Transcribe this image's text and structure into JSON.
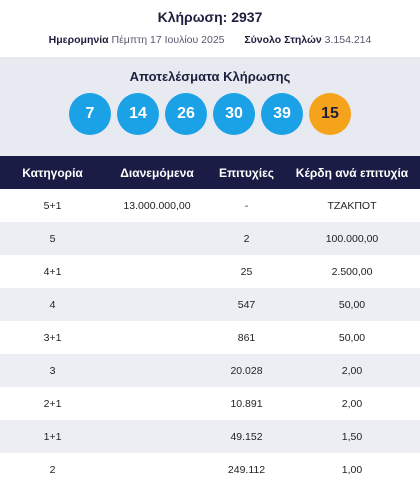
{
  "header": {
    "draw_title": "Κλήρωση: 2937",
    "date_label": "Ημερομηνία",
    "date_value": "Πέμπτη 17 Ιουλίου 2025",
    "columns_label": "Σύνολο Στηλών",
    "columns_value": "3.154.214"
  },
  "results": {
    "title": "Αποτελέσματα Κλήρωσης",
    "numbers": [
      "7",
      "14",
      "26",
      "30",
      "39"
    ],
    "bonus": "15"
  },
  "table": {
    "headers": [
      "Κατηγορία",
      "Διανεμόμενα",
      "Επιτυχίες",
      "Κέρδη ανά επιτυχία"
    ],
    "rows": [
      [
        "5+1",
        "13.000.000,00",
        "-",
        "ΤΖΑΚΠΟΤ"
      ],
      [
        "5",
        "",
        "2",
        "100.000,00"
      ],
      [
        "4+1",
        "",
        "25",
        "2.500,00"
      ],
      [
        "4",
        "",
        "547",
        "50,00"
      ],
      [
        "3+1",
        "",
        "861",
        "50,00"
      ],
      [
        "3",
        "",
        "20.028",
        "2,00"
      ],
      [
        "2+1",
        "",
        "10.891",
        "2,00"
      ],
      [
        "1+1",
        "",
        "49.152",
        "1,50"
      ],
      [
        "2",
        "",
        "249.112",
        "1,00"
      ]
    ]
  },
  "colors": {
    "header_bg": "#1b1c45",
    "ball_main": "#1aa1e6",
    "ball_bonus": "#f5a31a"
  }
}
